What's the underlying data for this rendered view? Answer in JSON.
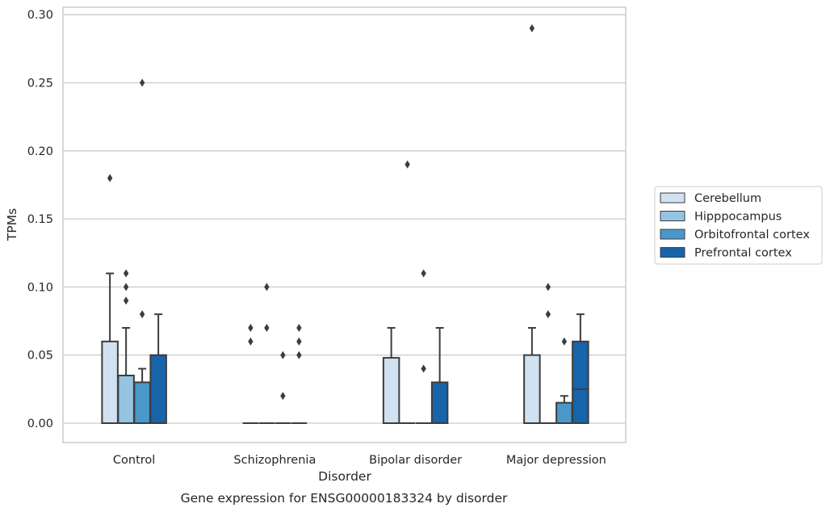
{
  "chart_data": {
    "type": "box",
    "caption": "Gene expression for ENSG00000183324 by disorder",
    "xlabel": "Disorder",
    "ylabel": "TPMs",
    "ylim": [
      -0.014,
      0.305
    ],
    "yticks": [
      "0.00",
      "0.05",
      "0.10",
      "0.15",
      "0.20",
      "0.25",
      "0.30"
    ],
    "categories": [
      "Control",
      "Schizophrenia",
      "Bipolar disorder",
      "Major depression"
    ],
    "grid": true,
    "legend_position": "right",
    "series": [
      {
        "name": "Cerebellum",
        "color": "#d0e1f2",
        "boxes": [
          {
            "min": 0.0,
            "q1": 0.0,
            "median": 0.0,
            "q3": 0.06,
            "max": 0.11,
            "outliers": [
              0.18
            ]
          },
          {
            "min": 0.0,
            "q1": 0.0,
            "median": 0.0,
            "q3": 0.0,
            "max": 0.0,
            "outliers": [
              0.06,
              0.07
            ]
          },
          {
            "min": 0.0,
            "q1": 0.0,
            "median": 0.0,
            "q3": 0.048,
            "max": 0.07,
            "outliers": []
          },
          {
            "min": 0.0,
            "q1": 0.0,
            "median": 0.0,
            "q3": 0.05,
            "max": 0.07,
            "outliers": [
              0.29
            ]
          }
        ]
      },
      {
        "name": "Hipppocampus",
        "color": "#94c4df",
        "boxes": [
          {
            "min": 0.0,
            "q1": 0.0,
            "median": 0.0,
            "q3": 0.035,
            "max": 0.07,
            "outliers": [
              0.09,
              0.1,
              0.11
            ]
          },
          {
            "min": 0.0,
            "q1": 0.0,
            "median": 0.0,
            "q3": 0.0,
            "max": 0.0,
            "outliers": [
              0.07,
              0.1
            ]
          },
          {
            "min": 0.0,
            "q1": 0.0,
            "median": 0.0,
            "q3": 0.0,
            "max": 0.0,
            "outliers": [
              0.19
            ]
          },
          {
            "min": 0.0,
            "q1": 0.0,
            "median": 0.0,
            "q3": 0.0,
            "max": 0.0,
            "outliers": [
              0.08,
              0.1
            ]
          }
        ]
      },
      {
        "name": "Orbitofrontal cortex",
        "color": "#4a98c9",
        "boxes": [
          {
            "min": 0.0,
            "q1": 0.0,
            "median": 0.0,
            "q3": 0.03,
            "max": 0.04,
            "outliers": [
              0.08,
              0.25
            ]
          },
          {
            "min": 0.0,
            "q1": 0.0,
            "median": 0.0,
            "q3": 0.0,
            "max": 0.0,
            "outliers": [
              0.02,
              0.05
            ]
          },
          {
            "min": 0.0,
            "q1": 0.0,
            "median": 0.0,
            "q3": 0.0,
            "max": 0.0,
            "outliers": [
              0.04,
              0.11
            ]
          },
          {
            "min": 0.0,
            "q1": 0.0,
            "median": 0.0,
            "q3": 0.015,
            "max": 0.02,
            "outliers": [
              0.06
            ]
          }
        ]
      },
      {
        "name": "Prefrontal cortex",
        "color": "#1764ab",
        "boxes": [
          {
            "min": 0.0,
            "q1": 0.0,
            "median": 0.0,
            "q3": 0.05,
            "max": 0.08,
            "outliers": []
          },
          {
            "min": 0.0,
            "q1": 0.0,
            "median": 0.0,
            "q3": 0.0,
            "max": 0.0,
            "outliers": [
              0.05,
              0.06,
              0.07
            ]
          },
          {
            "min": 0.0,
            "q1": 0.0,
            "median": 0.0,
            "q3": 0.03,
            "max": 0.07,
            "outliers": []
          },
          {
            "min": 0.0,
            "q1": 0.0,
            "median": 0.025,
            "q3": 0.06,
            "max": 0.08,
            "outliers": []
          }
        ]
      }
    ]
  }
}
